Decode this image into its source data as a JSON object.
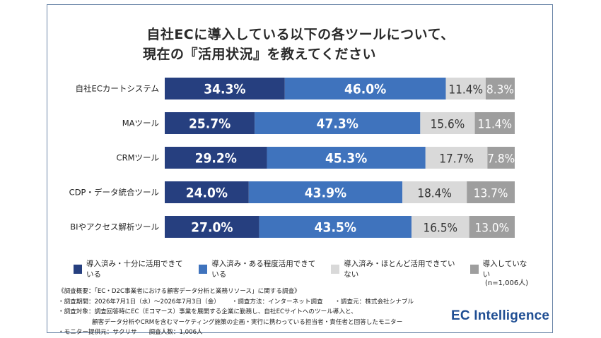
{
  "title_line1": "自社ECに導入している以下の各ツールについて、",
  "title_line2": "現在の『活用状況』を教えてください",
  "chart_data": {
    "type": "bar",
    "orientation": "horizontal",
    "stacked": true,
    "categories": [
      "自社ECカートシステム",
      "MAツール",
      "CRMツール",
      "CDP・データ統合ツール",
      "BIやアクセス解析ツール"
    ],
    "series": [
      {
        "name": "導入済み・十分に活用できている",
        "color": "#263f7f",
        "values": [
          34.3,
          25.7,
          29.2,
          24.0,
          27.0
        ]
      },
      {
        "name": "導入済み・ある程度活用できている",
        "color": "#3f73bd",
        "values": [
          46.0,
          47.3,
          45.3,
          43.9,
          43.5
        ]
      },
      {
        "name": "導入済み・ほとんど活用できていない",
        "color": "#d9d9d9",
        "values": [
          11.4,
          15.6,
          17.7,
          18.4,
          16.5
        ]
      },
      {
        "name": "導入していない",
        "color": "#9e9e9e",
        "values": [
          8.3,
          11.4,
          7.8,
          13.7,
          13.0
        ]
      }
    ],
    "value_suffix": "%",
    "legend_position": "bottom"
  },
  "sample_note": "(n=1,006人)",
  "notes": {
    "line1": "《調査概要：「EC・D2C事業者における顧客データ分析と業務リソース」に関する調査》",
    "period": "・調査期間：2026年7月1日（水）～2026年7月3日（金）",
    "method": "・調査方法：インターネット調査",
    "organizer": "・調査元：株式会社シナブル",
    "target1": "・調査対象：調査回答時にEC（Eコマース）事業を展開する企業に勤務し、自社ECサイトへのツール導入と、",
    "target2": "顧客データ分析やCRMを含むマーケティング施策の企画・実行に携わっている担当者・責任者と回答したモニター",
    "monitor": "・モニター提供元：サクリサ",
    "count": "調査人数：1,006人"
  },
  "brand": "EC Intelligence"
}
